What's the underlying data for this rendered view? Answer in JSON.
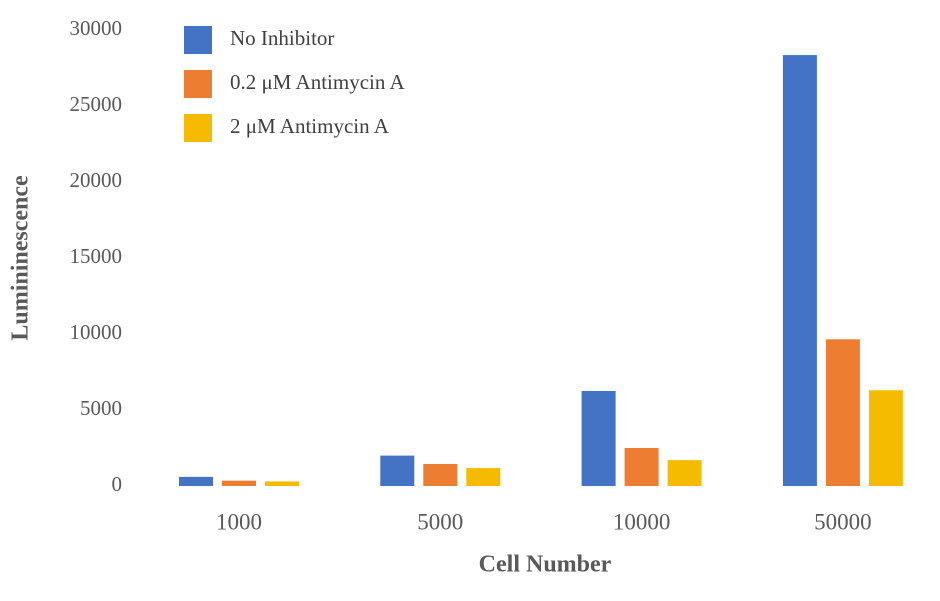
{
  "chart_data": {
    "type": "bar",
    "categories": [
      "1000",
      "5000",
      "10000",
      "50000"
    ],
    "x_label": "Cell Number",
    "y_label": "Lumininescence",
    "series": [
      {
        "name": "No Inhibitor",
        "color": "#4472c4",
        "values": [
          600,
          2000,
          6250,
          28350
        ]
      },
      {
        "name": "0.2 μM Antimycin A",
        "color": "#ed7d31",
        "values": [
          350,
          1450,
          2500,
          9650
        ]
      },
      {
        "name": "2 μM Antimycin A",
        "color": "#f5bb00",
        "values": [
          300,
          1180,
          1700,
          6300
        ]
      }
    ],
    "ylim": [
      0,
      30000
    ],
    "yticks": [
      0,
      5000,
      10000,
      15000,
      20000,
      25000,
      30000
    ],
    "grid": false,
    "legend": "top-left"
  }
}
